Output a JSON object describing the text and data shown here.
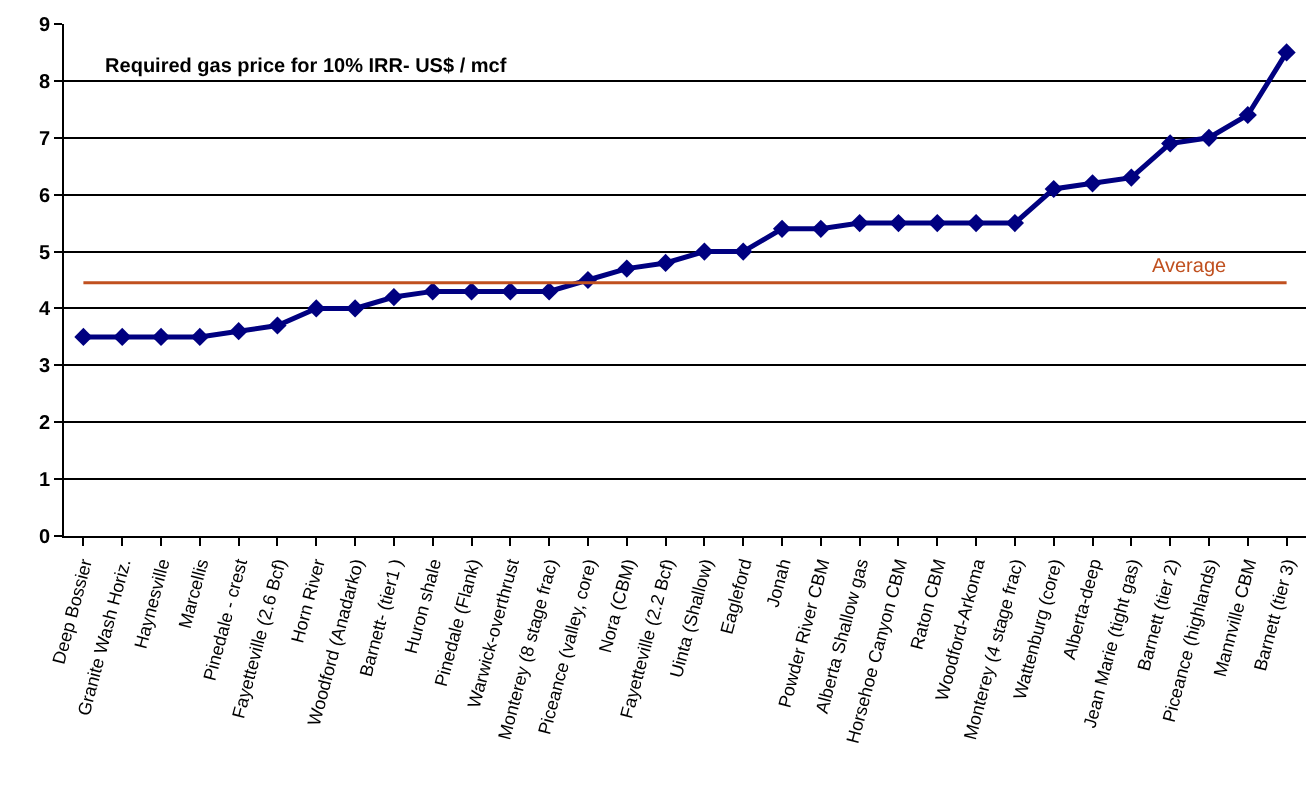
{
  "chart_data": {
    "type": "line",
    "title": "Required gas price for 10% IRR- US$ / mcf",
    "categories": [
      "Deep Bossier",
      "Granite Wash Horiz.",
      "Haynesville",
      "Marcellis",
      "Pinedale - crest",
      "Fayetteville (2.6 Bcf)",
      "Horn River",
      "Woodford (Anadarko)",
      "Barnett- (tier1 )",
      "Huron shale",
      "Pinedale (Flank)",
      "Warwick-overthrust",
      "Monterey (8 stage frac)",
      "Piceance (valley, core)",
      "Nora (CBM)",
      "Fayetteville (2.2 Bcf)",
      "Uinta (Shallow)",
      "Eagleford",
      "Jonah",
      "Powder River CBM",
      "Alberta Shallow gas",
      "Horsehoe Canyon CBM",
      "Raton CBM",
      "Woodford-Arkoma",
      "Monterey (4 stage frac)",
      "Wattenburg (core)",
      "Alberta-deep",
      "Jean Marie (tight gas)",
      "Barnett (tier 2)",
      "Piceance (highlands)",
      "Mannville CBM",
      "Barnett (tier 3)"
    ],
    "series": [
      {
        "color": "#000080",
        "values": [
          3.5,
          3.5,
          3.5,
          3.5,
          3.6,
          3.7,
          4.0,
          4.0,
          4.2,
          4.3,
          4.3,
          4.3,
          4.3,
          4.5,
          4.7,
          4.8,
          5.0,
          5.0,
          5.4,
          5.4,
          5.5,
          5.5,
          5.5,
          5.5,
          5.5,
          6.1,
          6.2,
          6.3,
          6.9,
          7.0,
          7.4,
          8.5
        ]
      }
    ],
    "ylim": [
      0,
      9
    ],
    "yticks": [
      0,
      1,
      2,
      3,
      4,
      5,
      6,
      7,
      8,
      9
    ],
    "grid": "y",
    "marker": "diamond",
    "line_style": "solid",
    "ref_lines": [
      {
        "axis": "y",
        "value": 4.45,
        "label": "Average",
        "color": "#c0501f"
      }
    ]
  }
}
